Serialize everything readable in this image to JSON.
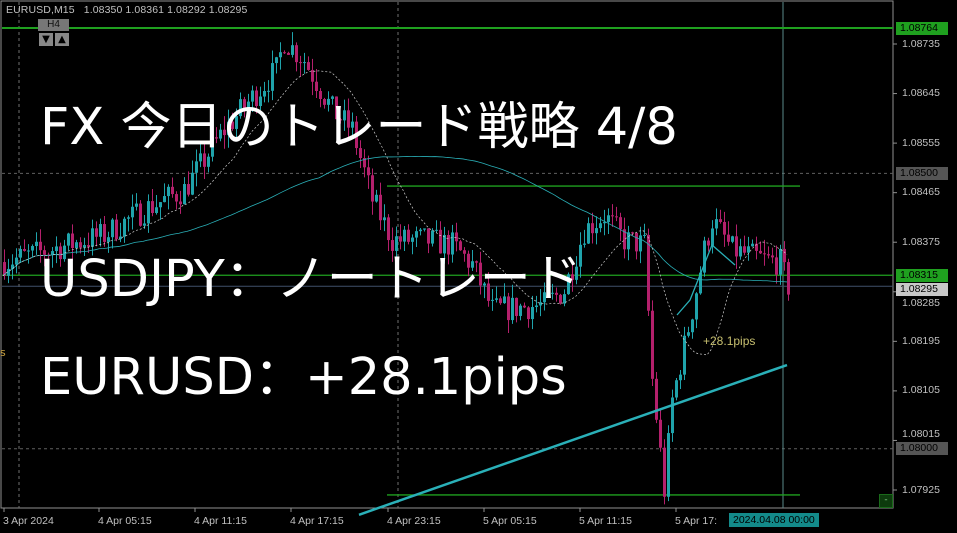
{
  "header": {
    "symbol": "EURUSD,M15",
    "ohlc": "1.08350 1.08361 1.08292 1.08295",
    "timeframe_button": "H4",
    "down_arrow": "▼",
    "up_arrow": "▲"
  },
  "overlay": {
    "line1": "FX 今日のトレード戦略 4/8",
    "line2": "USDJPY：ノートレード",
    "line3": "EURUSD：+28.1pips"
  },
  "annotation": {
    "pips_label": "+28.1pips",
    "left_fragment": "s"
  },
  "colors": {
    "background": "#000000",
    "bull_candle": "#1fa3ab",
    "bear_candle": "#b4206c",
    "level_line": "#1fa01f",
    "moving_average": "#2ab0b8",
    "price_label_green": "#1fa01f",
    "price_label_gray": "#555555",
    "time_highlight": "#138a8a"
  },
  "chart_data": {
    "type": "candlestick",
    "symbol": "EURUSD",
    "timeframe": "M15",
    "ylim": [
      1.0788,
      1.0879
    ],
    "y_ticks": [
      "1.08735",
      "1.08645",
      "1.08555",
      "1.08465",
      "1.08375",
      "1.08285",
      "1.08195",
      "1.08105",
      "1.08015",
      "1.07925"
    ],
    "x_ticks": [
      "3 Apr 2024",
      "4 Apr 05:15",
      "4 Apr 11:15",
      "4 Apr 17:15",
      "4 Apr 23:15",
      "5 Apr 05:15",
      "5 Apr 11:15",
      "5 Apr 17:"
    ],
    "x_highlight": "2024.04.08 00:00",
    "price_labels": [
      {
        "text": "1.08764",
        "value": 1.08764,
        "style": "green"
      },
      {
        "text": "1.08500",
        "value": 1.085,
        "style": "gray"
      },
      {
        "text": "1.08315",
        "value": 1.08315,
        "style": "green"
      },
      {
        "text": "1.08295",
        "value": 1.08295,
        "style": "light"
      },
      {
        "text": "1.08000",
        "value": 1.08,
        "style": "gray"
      }
    ],
    "levels": [
      {
        "value": 1.08764,
        "kind": "horizontal",
        "from": "start"
      },
      {
        "value": 1.08315,
        "kind": "horizontal",
        "from": "start"
      },
      {
        "value": 1.08477,
        "kind": "horizontal",
        "from": "2024-04-04 23:15"
      },
      {
        "value": 1.07916,
        "kind": "horizontal",
        "from": "2024-04-04 23:15"
      }
    ],
    "grid_levels": [
      1.085,
      1.08
    ],
    "grid": false,
    "price_path": [
      {
        "t": "2024-04-03 23:15",
        "p": 1.08339
      },
      {
        "t": "2024-04-04 05:30",
        "p": 1.08388
      },
      {
        "t": "2024-04-04 08:00",
        "p": 1.08434
      },
      {
        "t": "2024-04-04 10:30",
        "p": 1.0847
      },
      {
        "t": "2024-04-04 13:00",
        "p": 1.08579
      },
      {
        "t": "2024-04-04 16:15",
        "p": 1.08688
      },
      {
        "t": "2024-04-04 16:45",
        "p": 1.08742
      },
      {
        "t": "2024-04-04 18:00",
        "p": 1.08706
      },
      {
        "t": "2024-04-04 19:45",
        "p": 1.08615
      },
      {
        "t": "2024-04-04 21:00",
        "p": 1.08579
      },
      {
        "t": "2024-04-04 22:15",
        "p": 1.08452
      },
      {
        "t": "2024-04-04 23:30",
        "p": 1.08379
      },
      {
        "t": "2024-04-05 01:30",
        "p": 1.08379
      },
      {
        "t": "2024-04-05 03:15",
        "p": 1.0837
      },
      {
        "t": "2024-04-05 04:30",
        "p": 1.08334
      },
      {
        "t": "2024-04-05 05:45",
        "p": 1.08252
      },
      {
        "t": "2024-04-05 09:00",
        "p": 1.08261
      },
      {
        "t": "2024-04-05 10:15",
        "p": 1.08288
      },
      {
        "t": "2024-04-05 11:30",
        "p": 1.08397
      },
      {
        "t": "2024-04-05 12:45",
        "p": 1.08424
      },
      {
        "t": "2024-04-05 14:00",
        "p": 1.08379
      },
      {
        "t": "2024-04-05 15:15",
        "p": 1.0837
      },
      {
        "t": "2024-04-05 15:45",
        "p": 1.08125
      },
      {
        "t": "2024-04-05 16:30",
        "p": 1.07925
      },
      {
        "t": "2024-04-05 17:00",
        "p": 1.08088
      },
      {
        "t": "2024-04-05 18:15",
        "p": 1.08252
      },
      {
        "t": "2024-04-05 19:00",
        "p": 1.08361
      },
      {
        "t": "2024-04-05 19:30",
        "p": 1.08415
      },
      {
        "t": "2024-04-05 20:45",
        "p": 1.08361
      },
      {
        "t": "2024-04-05 22:45",
        "p": 1.08343
      },
      {
        "t": "2024-04-05 23:45",
        "p": 1.08339
      },
      {
        "t": "2024-04-06 00:15",
        "p": 1.08295
      }
    ],
    "moving_average_long": [
      {
        "t": "2024-04-04 21:30",
        "p": 1.0788
      },
      {
        "t": "2024-04-06 00:15",
        "p": 1.08152
      }
    ]
  }
}
